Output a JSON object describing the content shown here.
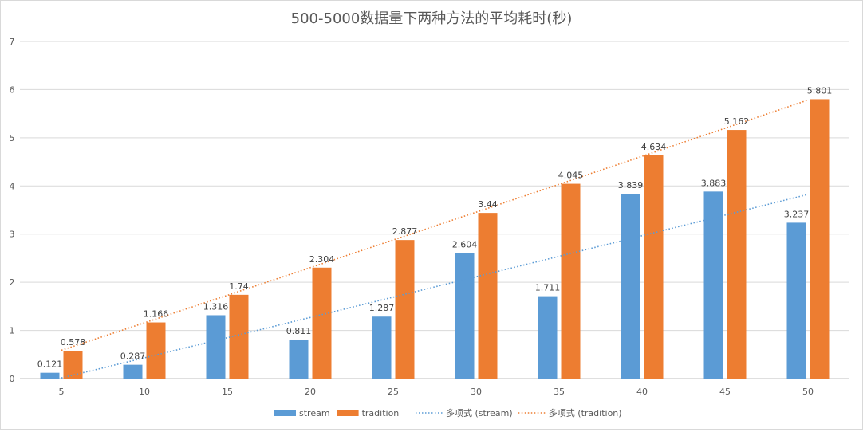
{
  "chart_data": {
    "type": "bar",
    "title": "500-5000数据量下两种方法的平均耗时(秒)",
    "xlabel": "",
    "ylabel": "",
    "categories": [
      "5",
      "10",
      "15",
      "20",
      "25",
      "30",
      "35",
      "40",
      "45",
      "50"
    ],
    "series": [
      {
        "name": "stream",
        "color": "#5b9bd5",
        "values": [
          0.121,
          0.287,
          1.316,
          0.811,
          1.287,
          2.604,
          1.711,
          3.839,
          3.883,
          3.237
        ]
      },
      {
        "name": "tradition",
        "color": "#ed7d31",
        "values": [
          0.578,
          1.166,
          1.74,
          2.304,
          2.877,
          3.44,
          4.045,
          4.634,
          5.162,
          5.801
        ]
      }
    ],
    "trendlines": [
      {
        "name": "多项式 (stream)",
        "series": "stream",
        "type": "polynomial",
        "color": "#5b9bd5"
      },
      {
        "name": "多项式 (tradition)",
        "series": "tradition",
        "type": "polynomial",
        "color": "#ed7d31"
      }
    ],
    "ylim": [
      0,
      7
    ],
    "yticks": [
      0,
      1,
      2,
      3,
      4,
      5,
      6,
      7
    ],
    "grid": true,
    "legend": "bottom"
  }
}
